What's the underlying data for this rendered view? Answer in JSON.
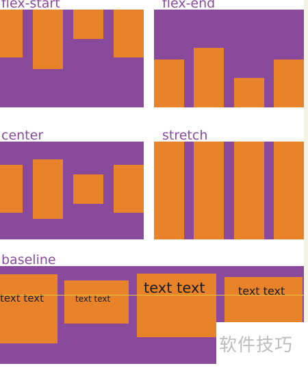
{
  "colors": {
    "container": "#8a4a9c",
    "item": "#e8832a",
    "label": "#8a4a9c",
    "baseline_line": "#e6c23d"
  },
  "panels": {
    "flex_start": {
      "label": "flex-start"
    },
    "flex_end": {
      "label": "flex-end"
    },
    "center": {
      "label": "center"
    },
    "stretch": {
      "label": "stretch"
    },
    "baseline": {
      "label": "baseline",
      "items": [
        "text text",
        "text text",
        "text text",
        "text text"
      ]
    }
  },
  "watermark": {
    "text": "软件技巧"
  }
}
